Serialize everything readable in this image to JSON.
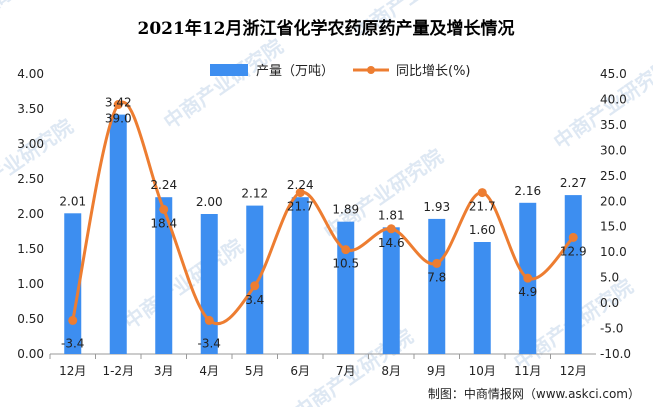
{
  "chart_data": {
    "type": "bar+line",
    "title": "2021年12月浙江省化学农药原药产量及增长情况",
    "categories": [
      "12月",
      "1-2月",
      "3月",
      "4月",
      "5月",
      "6月",
      "7月",
      "8月",
      "9月",
      "10月",
      "11月",
      "12月"
    ],
    "series": [
      {
        "name": "产量（万吨）",
        "type": "bar",
        "axis": "left",
        "color": "#3d8ef0",
        "values": [
          2.01,
          3.42,
          2.24,
          2.0,
          2.12,
          2.24,
          1.89,
          1.81,
          1.93,
          1.6,
          2.16,
          2.27
        ],
        "labels": [
          "2.01",
          "3.42",
          "2.24",
          "2.00",
          "2.12",
          "2.24",
          "1.89",
          "1.81",
          "1.93",
          "1.60",
          "2.16",
          "2.27"
        ]
      },
      {
        "name": "同比增长(%)",
        "type": "line",
        "axis": "right",
        "color": "#ed7d31",
        "values": [
          -3.4,
          39.0,
          18.4,
          -3.4,
          3.4,
          21.7,
          10.5,
          14.6,
          7.8,
          21.7,
          4.9,
          12.9
        ],
        "labels": [
          "-3.4",
          "39.0",
          "18.4",
          "-3.4",
          "3.4",
          "21.7",
          "10.5",
          "14.6",
          "7.8",
          "21.7",
          "4.9",
          "12.9"
        ]
      }
    ],
    "y_left": {
      "ylim": [
        0,
        4
      ],
      "ticks": [
        "0.00",
        "0.50",
        "1.00",
        "1.50",
        "2.00",
        "2.50",
        "3.00",
        "3.50",
        "4.00"
      ]
    },
    "y_right": {
      "ylim": [
        -10,
        45
      ],
      "ticks": [
        "-10.0",
        "-5.0",
        "0.0",
        "5.0",
        "10.0",
        "15.0",
        "20.0",
        "25.0",
        "30.0",
        "35.0",
        "40.0",
        "45.0"
      ]
    },
    "grid": false,
    "legend_position": "top-center",
    "source": "制图：中商情报网（www.askci.com）",
    "watermark": "中商产业研究院"
  }
}
